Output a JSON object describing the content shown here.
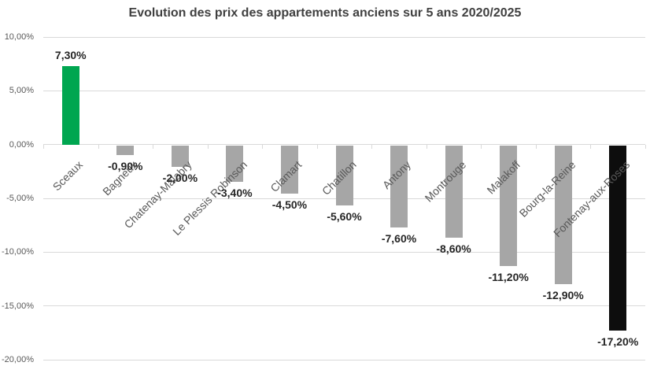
{
  "chart_data": {
    "type": "bar",
    "title": "Evolution des prix des appartements anciens sur 5 ans 2020/2025",
    "xlabel": "",
    "ylabel": "",
    "categories": [
      "Sceaux",
      "Bagneux",
      "Chatenay-Malabry",
      "Le Plessis Robinson",
      "Clamart",
      "Chatillon",
      "Antony",
      "Montrouge",
      "Malakoff",
      "Bourg-la-Reine",
      "Fontenay-aux-Roses"
    ],
    "values": [
      7.3,
      -0.9,
      -2.0,
      -3.4,
      -4.5,
      -5.6,
      -7.6,
      -8.6,
      -11.2,
      -12.9,
      -17.2
    ],
    "value_labels": [
      "7,30%",
      "-0,90%",
      "-2,00%",
      "-3,40%",
      "-4,50%",
      "-5,60%",
      "-7,60%",
      "-8,60%",
      "-11,20%",
      "-12,90%",
      "-17,20%"
    ],
    "bar_colors": [
      "#00a650",
      "#a6a6a6",
      "#a6a6a6",
      "#a6a6a6",
      "#a6a6a6",
      "#a6a6a6",
      "#a6a6a6",
      "#a6a6a6",
      "#a6a6a6",
      "#a6a6a6",
      "#0d0d0d"
    ],
    "ylim": [
      -20,
      10
    ],
    "yticks": {
      "values": [
        10,
        5,
        0,
        -5,
        -10,
        -15,
        -20
      ],
      "labels": [
        "10,00%",
        "5,00%",
        "0,00%",
        "-5,00%",
        "-10,00%",
        "-15,00%",
        "-20,00%"
      ]
    },
    "grid": true,
    "legend": false,
    "colors": {
      "positive_bar": "#00a650",
      "neutral_bar": "#a6a6a6",
      "lowest_bar": "#0d0d0d",
      "gridline": "#d9d9d9",
      "axis_text": "#595959",
      "title_text": "#404040",
      "value_label_text": "#262626"
    }
  }
}
